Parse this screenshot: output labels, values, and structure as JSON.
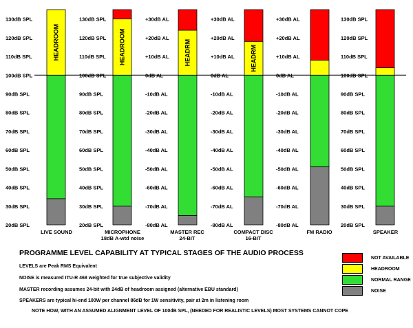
{
  "columns": [
    {
      "id": "live-sound",
      "label_lines": [
        "LIVE SOUND"
      ],
      "ticks": [
        "130dB SPL",
        "120dB SPL",
        "110dB SPL",
        "100dB SPL",
        "90dB SPL",
        "80dB SPL",
        "70dB SPL",
        "60dB SPL",
        "50dB SPL",
        "40dB SPL",
        "30dB SPL",
        "20dB SPL"
      ],
      "bands": [
        {
          "type": "noise",
          "from": 20,
          "to": 34
        },
        {
          "type": "normal",
          "from": 34,
          "to": 100
        },
        {
          "type": "headroom",
          "from": 100,
          "to": 135
        }
      ],
      "headroom_text": "HEADROOM"
    },
    {
      "id": "microphone",
      "label_lines": [
        "MICROPHONE",
        "18dB A-wtd noise"
      ],
      "ticks": [
        "130dB SPL",
        "120dB SPL",
        "110dB SPL",
        "100dB SPL",
        "90dB SPL",
        "80dB SPL",
        "70dB SPL",
        "60dB SPL",
        "50dB SPL",
        "40dB SPL",
        "30dB SPL",
        "20dB SPL"
      ],
      "bands": [
        {
          "type": "noise",
          "from": 20,
          "to": 30
        },
        {
          "type": "normal",
          "from": 30,
          "to": 100
        },
        {
          "type": "headroom",
          "from": 100,
          "to": 130
        },
        {
          "type": "not_available",
          "from": 130,
          "to": 135
        }
      ],
      "headroom_text": "HEADROOM"
    },
    {
      "id": "master-rec",
      "label_lines": [
        "MASTER REC",
        "24-BIT"
      ],
      "ticks": [
        "+30dB AL",
        "+20dB AL",
        "+10dB AL",
        "0dB AL",
        "-10dB AL",
        "-20dB AL",
        "-30dB AL",
        "-40dB AL",
        "-50dB AL",
        "-60dB AL",
        "-70dB AL",
        "-80dB AL"
      ],
      "bands": [
        {
          "type": "noise",
          "from": 20,
          "to": 25
        },
        {
          "type": "normal",
          "from": 25,
          "to": 100
        },
        {
          "type": "headroom",
          "from": 100,
          "to": 124
        },
        {
          "type": "not_available",
          "from": 124,
          "to": 135
        }
      ],
      "headroom_text": "HEADRM"
    },
    {
      "id": "compact-disc",
      "label_lines": [
        "COMPACT DISC",
        "16-BIT"
      ],
      "ticks": [
        "+30dB AL",
        "+20dB AL",
        "+10dB AL",
        "0dB AL",
        "-10dB AL",
        "-20dB AL",
        "-30dB AL",
        "-40dB AL",
        "-50dB AL",
        "-60dB AL",
        "-70dB AL",
        "-80dB AL"
      ],
      "bands": [
        {
          "type": "noise",
          "from": 20,
          "to": 35
        },
        {
          "type": "normal",
          "from": 35,
          "to": 100
        },
        {
          "type": "headroom",
          "from": 100,
          "to": 118
        },
        {
          "type": "not_available",
          "from": 118,
          "to": 135
        }
      ],
      "headroom_text": "HEADRM"
    },
    {
      "id": "fm-radio",
      "label_lines": [
        "FM RADIO"
      ],
      "ticks": [
        "+30dB AL",
        "+20dB AL",
        "+10dB AL",
        "0dB AL",
        "-10dB AL",
        "-20dB AL",
        "-30dB AL",
        "-40dB AL",
        "-50dB AL",
        "-60dB AL",
        "-70dB AL",
        "-80dB AL"
      ],
      "bands": [
        {
          "type": "noise",
          "from": 20,
          "to": 51
        },
        {
          "type": "normal",
          "from": 51,
          "to": 100
        },
        {
          "type": "headroom",
          "from": 100,
          "to": 108
        },
        {
          "type": "not_available",
          "from": 108,
          "to": 135
        }
      ],
      "headroom_text": ""
    },
    {
      "id": "speaker",
      "label_lines": [
        "SPEAKER"
      ],
      "ticks": [
        "130dB SPL",
        "120dB SPL",
        "110dB SPL",
        "100dB SPL",
        "90dB SPL",
        "80dB SPL",
        "70dB SPL",
        "60dB SPL",
        "50dB SPL",
        "40dB SPL",
        "30dB SPL",
        "20dB SPL"
      ],
      "bands": [
        {
          "type": "noise",
          "from": 20,
          "to": 30
        },
        {
          "type": "normal",
          "from": 30,
          "to": 100
        },
        {
          "type": "headroom",
          "from": 100,
          "to": 104
        },
        {
          "type": "not_available",
          "from": 104,
          "to": 135
        }
      ],
      "headroom_text": ""
    }
  ],
  "colors": {
    "not_available": "#ff0000",
    "headroom": "#ffff00",
    "normal": "#33dd33",
    "noise": "#808080"
  },
  "title": "PROGRAMME LEVEL CAPABILITY AT TYPICAL STAGES OF THE AUDIO PROCESS",
  "notes": [
    "LEVELS are Peak RMS Equivalent",
    "NOISE is measured ITU-R 468 weighted for true subjective validity",
    "MASTER recording assumes 24-bit with 24dB of headroom assigned  (alternative EBU standard)",
    "SPEAKERS are typical hi-end 100W per channel 86dB for 1W sensitivity, pair at 2m in listening room",
    "NOTE HOW, WITH AN ASSUMED ALIGNMENT LEVEL OF 100dB SPL, (NEEDED FOR REALISTIC LEVELS) MOST SYSTEMS CANNOT COPE"
  ],
  "legend": [
    {
      "key": "not_available",
      "label": "NOT AVAILABLE",
      "color": "#ff0000"
    },
    {
      "key": "headroom",
      "label": "HEADROOM",
      "color": "#ffff00"
    },
    {
      "key": "normal",
      "label": "NORMAL RANGE",
      "color": "#33dd33"
    },
    {
      "key": "noise",
      "label": "NOISE",
      "color": "#808080"
    }
  ]
}
